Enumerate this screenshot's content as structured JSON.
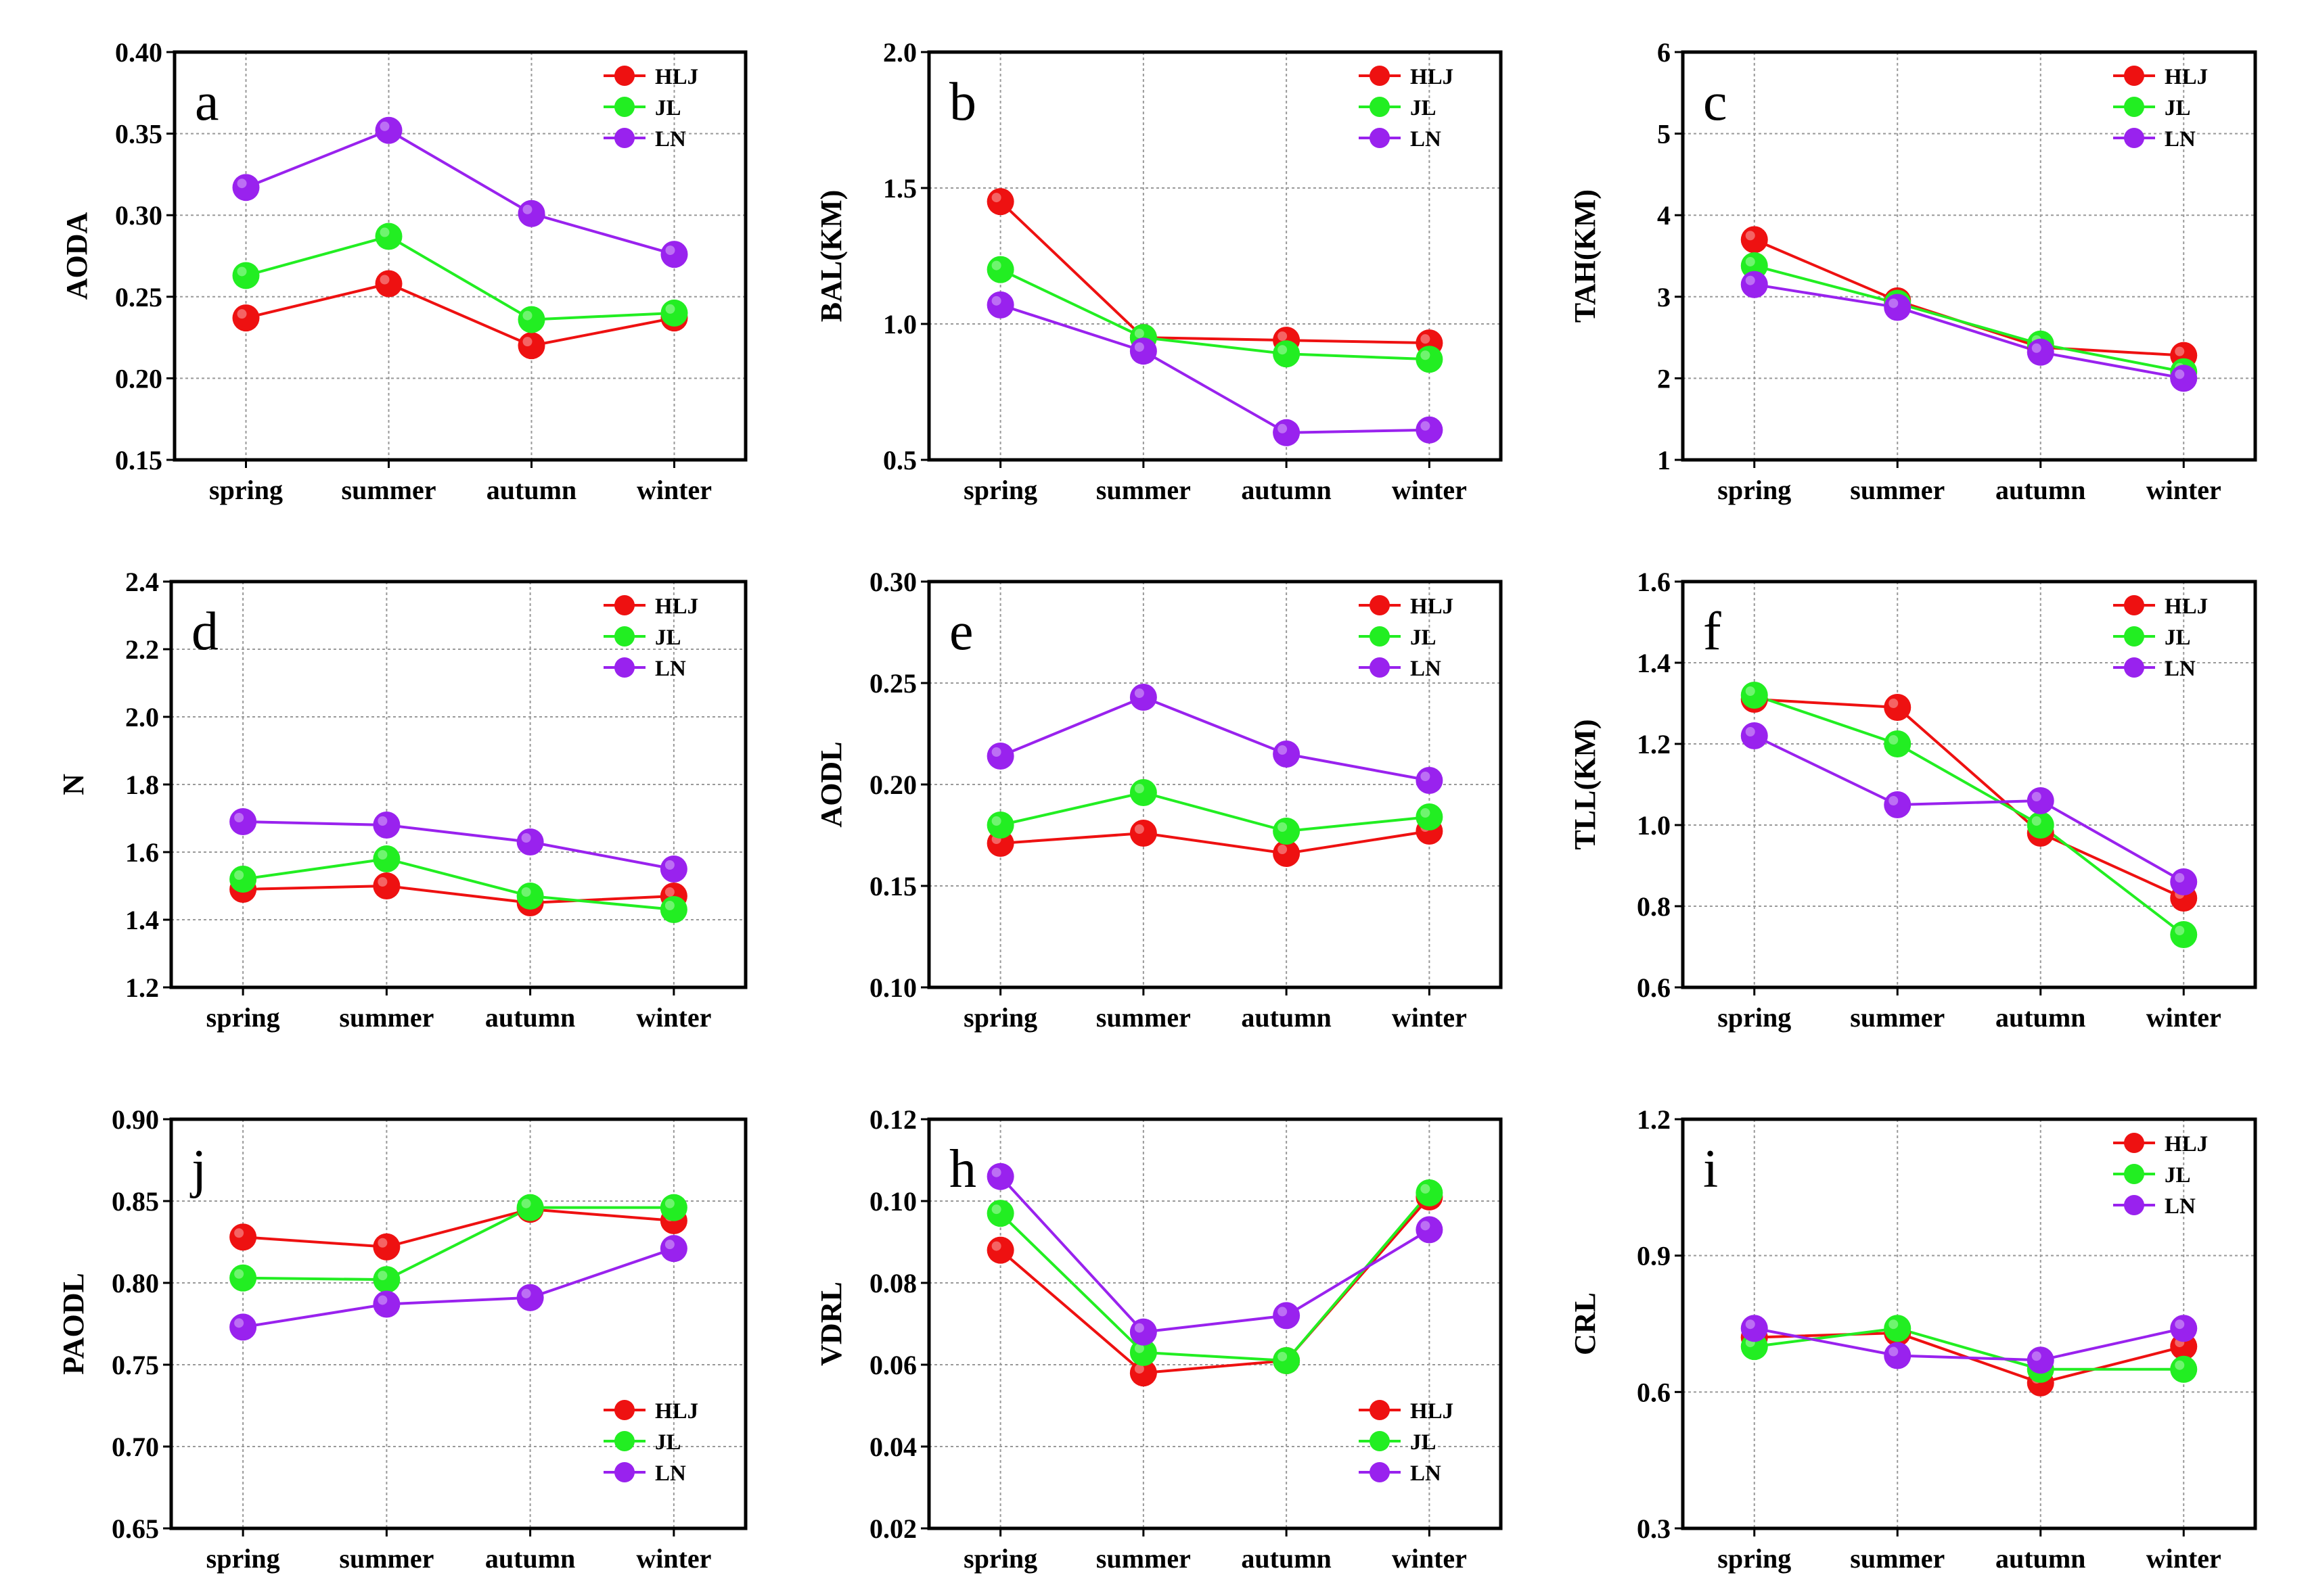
{
  "colors": {
    "HLJ": "#ee1111",
    "JL": "#22ee22",
    "LN": "#9922ee"
  },
  "chart_data": [
    {
      "type": "line",
      "letter": "a",
      "ylabel": "AODA",
      "ylim": [
        0.15,
        0.4
      ],
      "yticks": [
        "0.15",
        "0.20",
        "0.25",
        "0.30",
        "0.35",
        "0.40"
      ],
      "categories": [
        "spring",
        "summer",
        "autumn",
        "winter"
      ],
      "legend_position": "top-right",
      "series": [
        {
          "name": "HLJ",
          "values": [
            0.237,
            0.258,
            0.22,
            0.237
          ]
        },
        {
          "name": "JL",
          "values": [
            0.263,
            0.287,
            0.236,
            0.24
          ]
        },
        {
          "name": "LN",
          "values": [
            0.317,
            0.352,
            0.301,
            0.276
          ]
        }
      ]
    },
    {
      "type": "line",
      "letter": "b",
      "ylabel": "BAL(KM)",
      "ylim": [
        0.5,
        2.0
      ],
      "yticks": [
        "0.5",
        "1.0",
        "1.5",
        "2.0"
      ],
      "categories": [
        "spring",
        "summer",
        "autumn",
        "winter"
      ],
      "legend_position": "top-right",
      "series": [
        {
          "name": "HLJ",
          "values": [
            1.45,
            0.95,
            0.94,
            0.93
          ]
        },
        {
          "name": "JL",
          "values": [
            1.2,
            0.95,
            0.89,
            0.87
          ]
        },
        {
          "name": "LN",
          "values": [
            1.07,
            0.9,
            0.6,
            0.61
          ]
        }
      ]
    },
    {
      "type": "line",
      "letter": "c",
      "ylabel": "TAH(KM)",
      "ylim": [
        1,
        6
      ],
      "yticks": [
        "1",
        "2",
        "3",
        "4",
        "5",
        "6"
      ],
      "categories": [
        "spring",
        "summer",
        "autumn",
        "winter"
      ],
      "legend_position": "top-right",
      "series": [
        {
          "name": "HLJ",
          "values": [
            3.7,
            2.95,
            2.38,
            2.28
          ]
        },
        {
          "name": "JL",
          "values": [
            3.38,
            2.92,
            2.42,
            2.08
          ]
        },
        {
          "name": "LN",
          "values": [
            3.15,
            2.87,
            2.32,
            2.0
          ]
        }
      ]
    },
    {
      "type": "line",
      "letter": "d",
      "ylabel": "N",
      "ylim": [
        1.2,
        2.4
      ],
      "yticks": [
        "1.2",
        "1.4",
        "1.6",
        "1.8",
        "2.0",
        "2.2",
        "2.4"
      ],
      "categories": [
        "spring",
        "summer",
        "autumn",
        "winter"
      ],
      "legend_position": "top-right",
      "series": [
        {
          "name": "HLJ",
          "values": [
            1.49,
            1.5,
            1.45,
            1.47
          ]
        },
        {
          "name": "JL",
          "values": [
            1.52,
            1.58,
            1.47,
            1.43
          ]
        },
        {
          "name": "LN",
          "values": [
            1.69,
            1.68,
            1.63,
            1.55
          ]
        }
      ]
    },
    {
      "type": "line",
      "letter": "e",
      "ylabel": "AODL",
      "ylim": [
        0.1,
        0.3
      ],
      "yticks": [
        "0.10",
        "0.15",
        "0.20",
        "0.25",
        "0.30"
      ],
      "categories": [
        "spring",
        "summer",
        "autumn",
        "winter"
      ],
      "legend_position": "top-right",
      "series": [
        {
          "name": "HLJ",
          "values": [
            0.171,
            0.176,
            0.166,
            0.177
          ]
        },
        {
          "name": "JL",
          "values": [
            0.18,
            0.196,
            0.177,
            0.184
          ]
        },
        {
          "name": "LN",
          "values": [
            0.214,
            0.243,
            0.215,
            0.202
          ]
        }
      ]
    },
    {
      "type": "line",
      "letter": "f",
      "ylabel": "TLL(KM)",
      "ylim": [
        0.6,
        1.6
      ],
      "yticks": [
        "0.6",
        "0.8",
        "1.0",
        "1.2",
        "1.4",
        "1.6"
      ],
      "categories": [
        "spring",
        "summer",
        "autumn",
        "winter"
      ],
      "legend_position": "top-right",
      "series": [
        {
          "name": "HLJ",
          "values": [
            1.31,
            1.29,
            0.98,
            0.82
          ]
        },
        {
          "name": "JL",
          "values": [
            1.32,
            1.2,
            1.0,
            0.73
          ]
        },
        {
          "name": "LN",
          "values": [
            1.22,
            1.05,
            1.06,
            0.86
          ]
        }
      ]
    },
    {
      "type": "line",
      "letter": "j",
      "ylabel": "PAODL",
      "ylim": [
        0.65,
        0.9
      ],
      "yticks": [
        "0.65",
        "0.70",
        "0.75",
        "0.80",
        "0.85",
        "0.90"
      ],
      "categories": [
        "spring",
        "summer",
        "autumn",
        "winter"
      ],
      "legend_position": "bottom-right",
      "series": [
        {
          "name": "HLJ",
          "values": [
            0.828,
            0.822,
            0.845,
            0.838
          ]
        },
        {
          "name": "JL",
          "values": [
            0.803,
            0.802,
            0.846,
            0.846
          ]
        },
        {
          "name": "LN",
          "values": [
            0.773,
            0.787,
            0.791,
            0.821
          ]
        }
      ]
    },
    {
      "type": "line",
      "letter": "h",
      "ylabel": "VDRL",
      "ylim": [
        0.02,
        0.12
      ],
      "yticks": [
        "0.02",
        "0.04",
        "0.06",
        "0.08",
        "0.10",
        "0.12"
      ],
      "categories": [
        "spring",
        "summer",
        "autumn",
        "winter"
      ],
      "legend_position": "bottom-right",
      "series": [
        {
          "name": "HLJ",
          "values": [
            0.088,
            0.058,
            0.061,
            0.101
          ]
        },
        {
          "name": "JL",
          "values": [
            0.097,
            0.063,
            0.061,
            0.102
          ]
        },
        {
          "name": "LN",
          "values": [
            0.106,
            0.068,
            0.072,
            0.093
          ]
        }
      ]
    },
    {
      "type": "line",
      "letter": "i",
      "ylabel": "CRL",
      "ylim": [
        0.3,
        1.2
      ],
      "yticks": [
        "0.3",
        "0.6",
        "0.9",
        "1.2"
      ],
      "categories": [
        "spring",
        "summer",
        "autumn",
        "winter"
      ],
      "legend_position": "top-right",
      "series": [
        {
          "name": "HLJ",
          "values": [
            0.72,
            0.73,
            0.62,
            0.7
          ]
        },
        {
          "name": "JL",
          "values": [
            0.7,
            0.74,
            0.65,
            0.65
          ]
        },
        {
          "name": "LN",
          "values": [
            0.74,
            0.68,
            0.67,
            0.74
          ]
        }
      ]
    }
  ]
}
